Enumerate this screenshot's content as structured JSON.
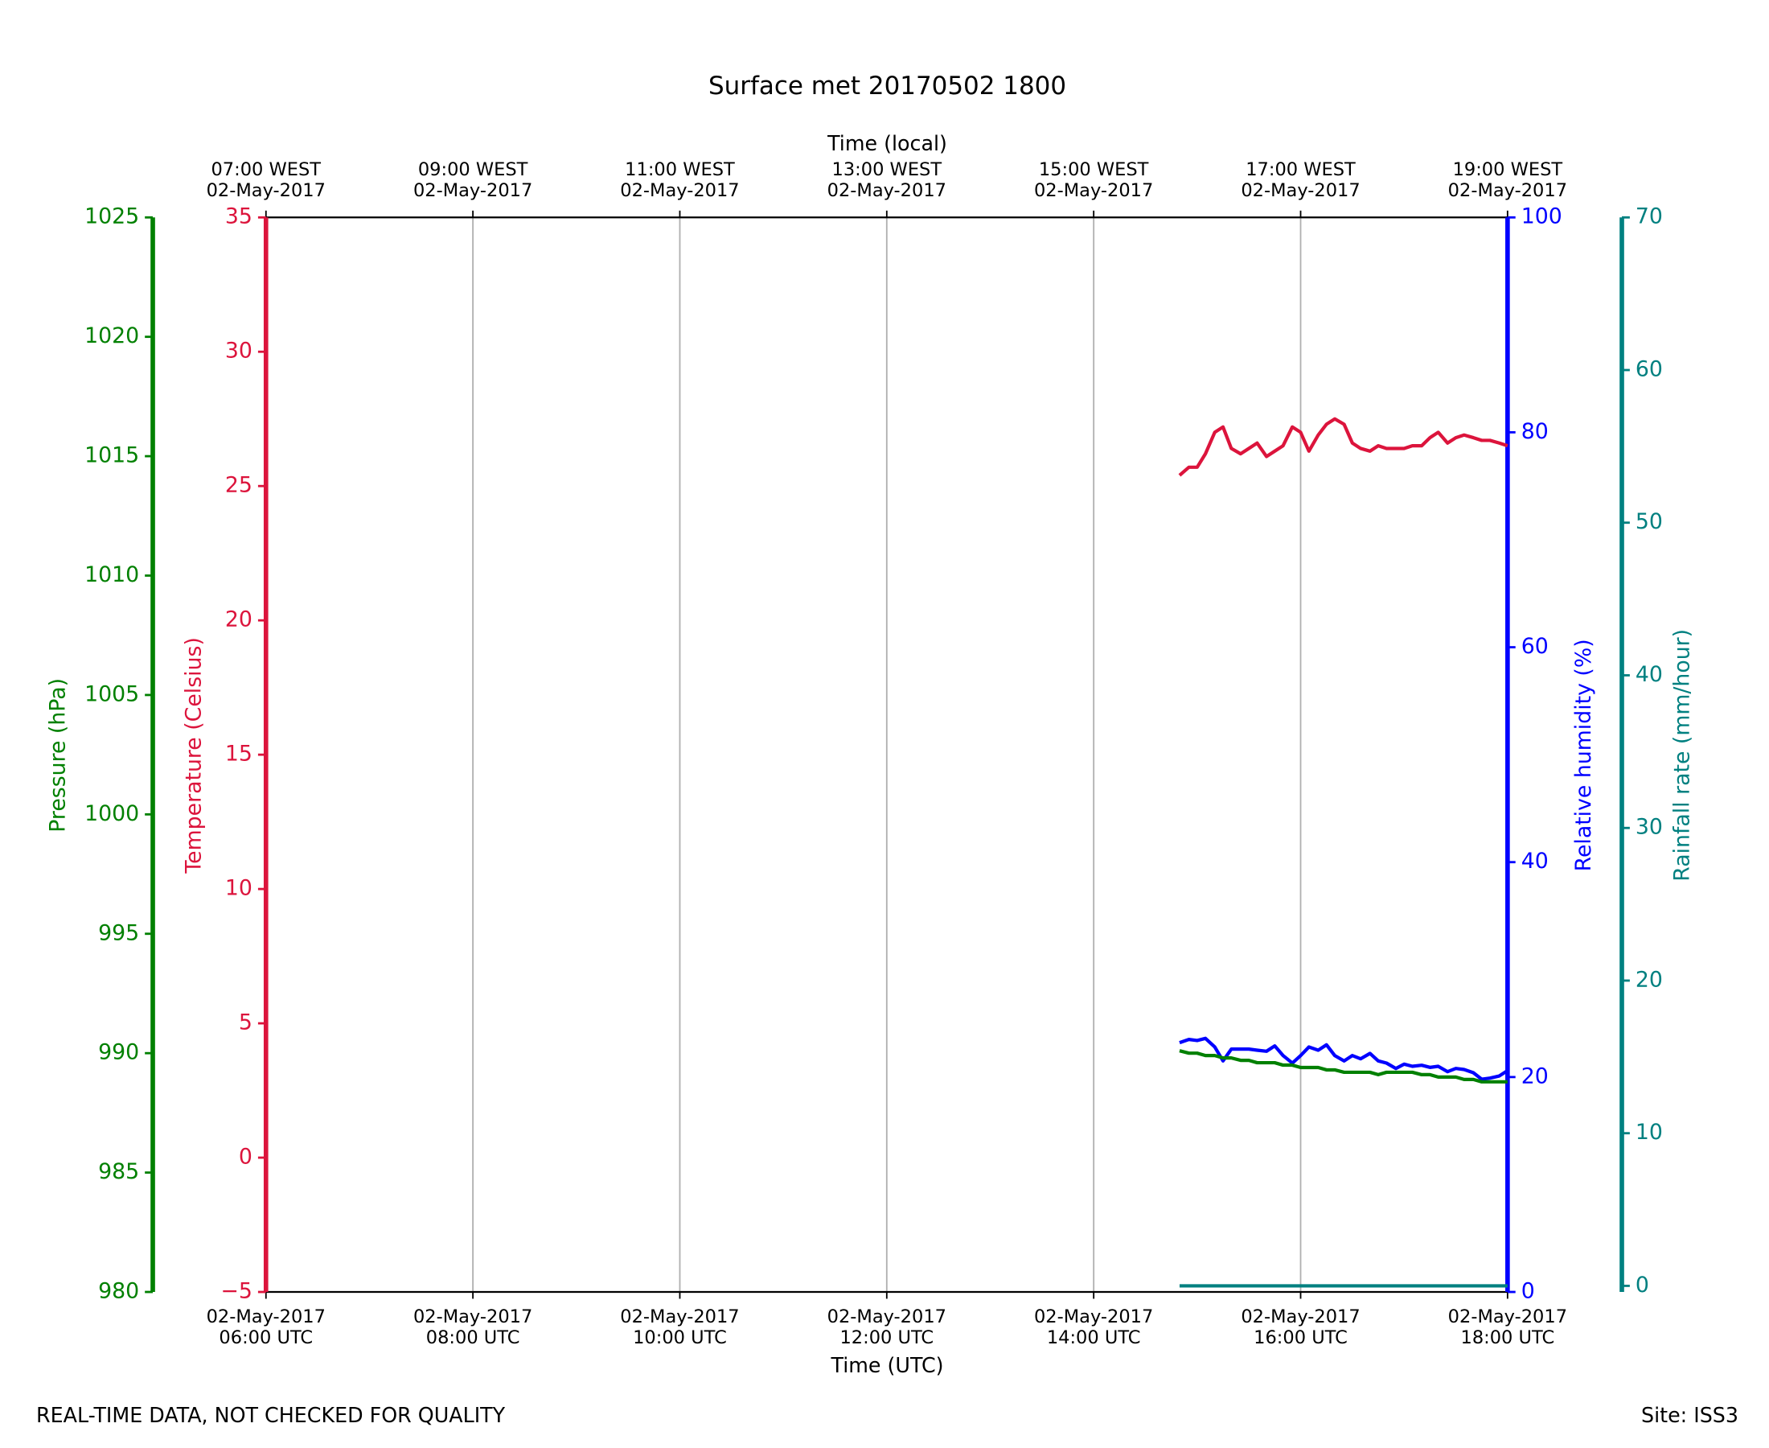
{
  "chart_data": {
    "type": "line",
    "title": "Surface met 20170502 1800",
    "top_xlabel": "Time (local)",
    "xlabel": "Time (UTC)",
    "footer_left": "REAL-TIME DATA, NOT CHECKED FOR QUALITY",
    "footer_right": "Site: ISS3",
    "ylabel": "Temperature (Celsius)",
    "y2label": "Relative humidity (%)",
    "y3label": "Pressure (hPa)",
    "y4label": "Rainfall rate (mm/hour)",
    "grid": true,
    "xlim": [
      6,
      18
    ],
    "xticks": [
      {
        "value": 6,
        "label": "02-May-2017\n06:00 UTC"
      },
      {
        "value": 8,
        "label": "02-May-2017\n08:00 UTC"
      },
      {
        "value": 10,
        "label": "02-May-2017\n10:00 UTC"
      },
      {
        "value": 12,
        "label": "02-May-2017\n12:00 UTC"
      },
      {
        "value": 14,
        "label": "02-May-2017\n14:00 UTC"
      },
      {
        "value": 16,
        "label": "02-May-2017\n16:00 UTC"
      },
      {
        "value": 18,
        "label": "02-May-2017\n18:00 UTC"
      }
    ],
    "top_xticks": [
      {
        "value": 6,
        "label": "07:00 WEST\n02-May-2017"
      },
      {
        "value": 8,
        "label": "09:00 WEST\n02-May-2017"
      },
      {
        "value": 10,
        "label": "11:00 WEST\n02-May-2017"
      },
      {
        "value": 12,
        "label": "13:00 WEST\n02-May-2017"
      },
      {
        "value": 14,
        "label": "15:00 WEST\n02-May-2017"
      },
      {
        "value": 16,
        "label": "17:00 WEST\n02-May-2017"
      },
      {
        "value": 18,
        "label": "19:00 WEST\n02-May-2017"
      }
    ],
    "ylim": [
      -5,
      35
    ],
    "yticks": [
      {
        "value": -5,
        "label": "−5"
      },
      0,
      5,
      10,
      15,
      20,
      25,
      30,
      35
    ],
    "y2lim": [
      0,
      100
    ],
    "y2ticks": [
      0,
      20,
      40,
      60,
      80,
      100
    ],
    "y3lim": [
      980,
      1025
    ],
    "y3ticks": [
      980,
      985,
      990,
      995,
      1000,
      1005,
      1010,
      1015,
      1020,
      1025
    ],
    "y4lim": [
      -0.4,
      70
    ],
    "y4ticks": [
      0,
      10,
      20,
      30,
      40,
      50,
      60,
      70
    ],
    "x": [
      14.83,
      14.92,
      15.0,
      15.08,
      15.17,
      15.25,
      15.33,
      15.42,
      15.5,
      15.58,
      15.67,
      15.75,
      15.83,
      15.92,
      16.0,
      16.08,
      16.17,
      16.25,
      16.33,
      16.42,
      16.5,
      16.58,
      16.67,
      16.75,
      16.83,
      16.92,
      17.0,
      17.08,
      17.17,
      17.25,
      17.33,
      17.42,
      17.5,
      17.58,
      17.67,
      17.75,
      17.83,
      17.92,
      18.0
    ],
    "series": [
      {
        "name": "Temperature",
        "color": "#dc143c",
        "axis": "y",
        "values": [
          25.4,
          25.7,
          25.7,
          26.2,
          27.0,
          27.2,
          26.4,
          26.2,
          26.4,
          26.6,
          26.1,
          26.3,
          26.5,
          27.2,
          27.0,
          26.3,
          26.9,
          27.3,
          27.5,
          27.3,
          26.6,
          26.4,
          26.3,
          26.5,
          26.4,
          26.4,
          26.4,
          26.5,
          26.5,
          26.8,
          27.0,
          26.6,
          26.8,
          26.9,
          26.8,
          26.7,
          26.7,
          26.6,
          26.5
        ]
      },
      {
        "name": "Relative humidity",
        "color": "#0000ff",
        "axis": "y2",
        "values": [
          23.2,
          23.5,
          23.4,
          23.6,
          22.8,
          21.5,
          22.6,
          22.6,
          22.6,
          22.5,
          22.4,
          22.9,
          22.0,
          21.3,
          22.0,
          22.8,
          22.5,
          23.0,
          22.0,
          21.5,
          22.0,
          21.7,
          22.2,
          21.5,
          21.3,
          20.8,
          21.2,
          21.0,
          21.1,
          20.9,
          21.0,
          20.5,
          20.8,
          20.7,
          20.4,
          19.8,
          19.9,
          20.1,
          20.6
        ]
      },
      {
        "name": "Pressure",
        "color": "#008000",
        "axis": "y3",
        "values": [
          990.1,
          990.0,
          990.0,
          989.9,
          989.9,
          989.8,
          989.8,
          989.7,
          989.7,
          989.6,
          989.6,
          989.6,
          989.5,
          989.5,
          989.4,
          989.4,
          989.4,
          989.3,
          989.3,
          989.2,
          989.2,
          989.2,
          989.2,
          989.1,
          989.2,
          989.2,
          989.2,
          989.2,
          989.1,
          989.1,
          989.0,
          989.0,
          989.0,
          988.9,
          988.9,
          988.8,
          988.8,
          988.8,
          988.8
        ]
      },
      {
        "name": "Rainfall rate",
        "color": "#008080",
        "axis": "y4",
        "values": [
          0,
          0,
          0,
          0,
          0,
          0,
          0,
          0,
          0,
          0,
          0,
          0,
          0,
          0,
          0,
          0,
          0,
          0,
          0,
          0,
          0,
          0,
          0,
          0,
          0,
          0,
          0,
          0,
          0,
          0,
          0,
          0,
          0,
          0,
          0,
          0,
          0,
          0,
          0
        ]
      }
    ]
  }
}
